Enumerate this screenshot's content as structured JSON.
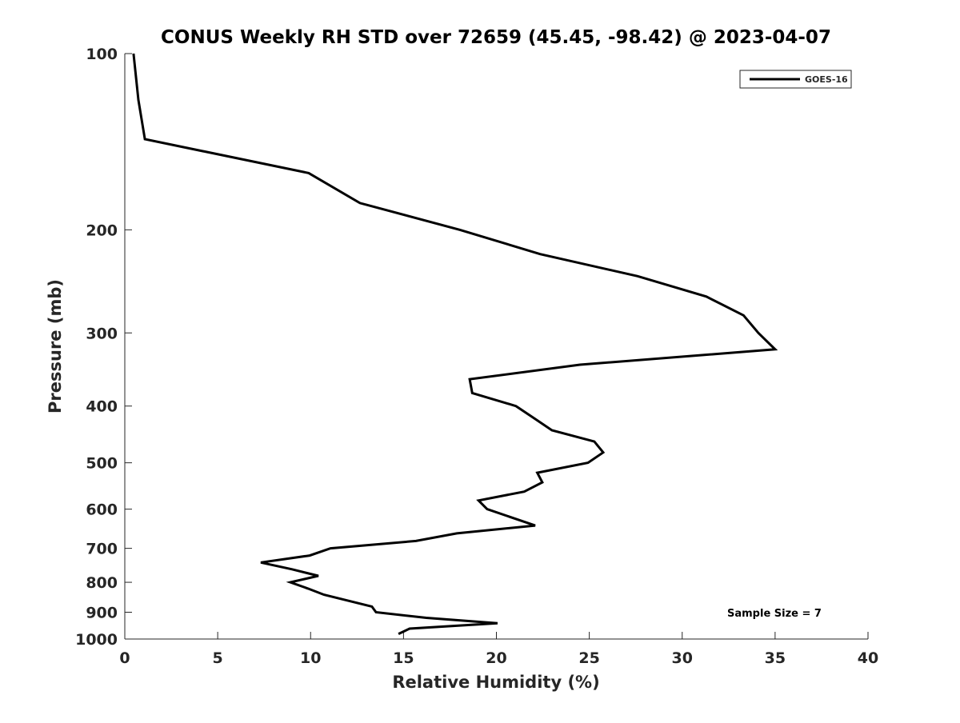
{
  "chart_data": {
    "type": "line",
    "title": "CONUS Weekly RH STD over 72659 (45.45, -98.42) @ 2023-04-07",
    "xlabel": "Relative Humidity (%)",
    "ylabel": "Pressure (mb)",
    "xlim": [
      0,
      40
    ],
    "ylim": [
      100,
      1000
    ],
    "yscale": "log",
    "yreversed": true,
    "xticks": [
      0,
      5,
      10,
      15,
      20,
      25,
      30,
      35,
      40
    ],
    "yticks": [
      100,
      200,
      300,
      400,
      500,
      600,
      700,
      800,
      900,
      1000
    ],
    "grid": false,
    "legend": {
      "position": "top-right",
      "entries": [
        "GOES-16"
      ]
    },
    "annotation": "Sample Size = 7",
    "series": [
      {
        "name": "GOES-16",
        "color": "#000000",
        "x": [
          0.47,
          0.73,
          1.08,
          9.9,
          12.66,
          18.04,
          22.35,
          27.6,
          31.3,
          33.3,
          34.1,
          35.0,
          24.5,
          18.56,
          18.7,
          21.05,
          22.05,
          22.99,
          25.27,
          25.75,
          24.93,
          22.2,
          22.47,
          21.5,
          19.04,
          19.5,
          22.09,
          17.87,
          15.67,
          11.07,
          9.95,
          7.32,
          9.0,
          10.42,
          8.91,
          9.86,
          10.72,
          13.3,
          13.52,
          16.23,
          20.06,
          15.33,
          14.73
        ],
        "y": [
          100,
          120,
          140,
          160,
          180,
          200,
          220,
          240,
          260,
          280,
          300,
          320,
          340,
          360,
          380,
          400,
          420,
          440,
          460,
          480,
          500,
          520,
          540,
          560,
          580,
          600,
          640,
          660,
          680,
          700,
          720,
          740,
          760,
          780,
          800,
          820,
          840,
          880,
          900,
          920,
          940,
          960,
          980
        ]
      }
    ]
  }
}
